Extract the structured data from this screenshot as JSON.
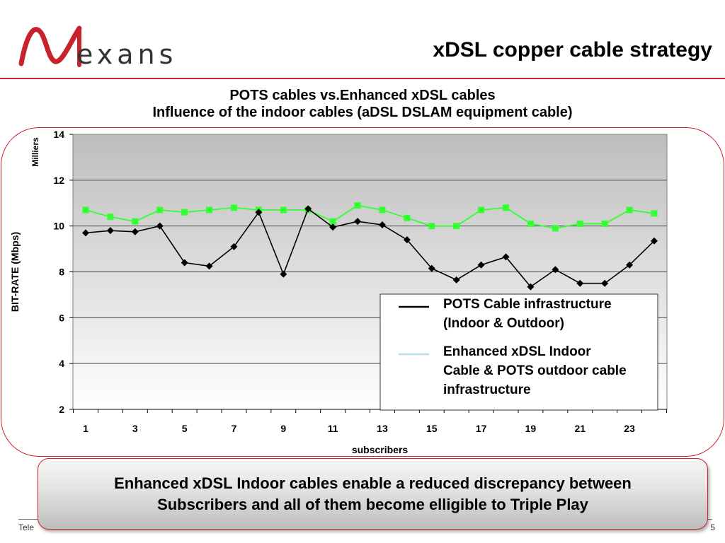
{
  "header": {
    "logo_text": "exans",
    "title": "xDSL copper cable strategy"
  },
  "colors": {
    "accent": "#d2202f",
    "pots_series": "#000000",
    "enhanced_series": "#33ff33",
    "enhanced_legend_swatch": "#b6dde8"
  },
  "chart_data": {
    "type": "line",
    "title_lines": [
      "POTS cables vs.Enhanced xDSL cables",
      "Influence of the indoor cables (aDSL DSLAM equipment cable)"
    ],
    "xlabel": "subscribers",
    "ylabel": "BIT-RATE (Mbps)",
    "unit_label": "Milliers",
    "x": [
      1,
      2,
      3,
      4,
      5,
      6,
      7,
      8,
      9,
      10,
      11,
      12,
      13,
      14,
      15,
      16,
      17,
      18,
      19,
      20,
      21,
      22,
      23,
      24
    ],
    "x_tick_labels": [
      "1",
      "3",
      "5",
      "7",
      "9",
      "11",
      "13",
      "15",
      "17",
      "19",
      "21",
      "23"
    ],
    "y_tick_labels": [
      "2",
      "4",
      "6",
      "8",
      "10",
      "12",
      "14"
    ],
    "ylim": [
      2,
      14
    ],
    "grid": true,
    "legend_position": "bottom-right",
    "series": [
      {
        "name": "POTS Cable infrastructure (Indoor & Outdoor)",
        "legend_lines": [
          "POTS Cable infrastructure",
          "(Indoor & Outdoor)"
        ],
        "marker": "diamond",
        "values": [
          9.7,
          9.8,
          9.75,
          10.0,
          8.4,
          8.25,
          9.1,
          10.6,
          7.9,
          10.75,
          9.95,
          10.2,
          10.05,
          9.4,
          8.15,
          7.65,
          8.3,
          8.65,
          7.35,
          8.1,
          7.5,
          7.5,
          8.3,
          9.35
        ]
      },
      {
        "name": "Enhanced xDSL Indoor Cable & POTS outdoor cable infrastructure",
        "legend_lines": [
          "Enhanced xDSL Indoor",
          "Cable & POTS outdoor cable",
          "infrastructure"
        ],
        "marker": "square",
        "values": [
          10.7,
          10.4,
          10.2,
          10.7,
          10.6,
          10.7,
          10.8,
          10.7,
          10.7,
          10.7,
          10.2,
          10.9,
          10.7,
          10.35,
          10.0,
          10.0,
          10.7,
          10.8,
          10.1,
          9.9,
          10.1,
          10.1,
          10.7,
          10.55
        ]
      }
    ]
  },
  "callout": {
    "lines": [
      "Enhanced xDSL Indoor cables enable a reduced discrepancy between",
      "Subscribers and all of them become elligible to Triple Play"
    ]
  },
  "footer": {
    "left_text": "Tele",
    "page_number": "5"
  }
}
